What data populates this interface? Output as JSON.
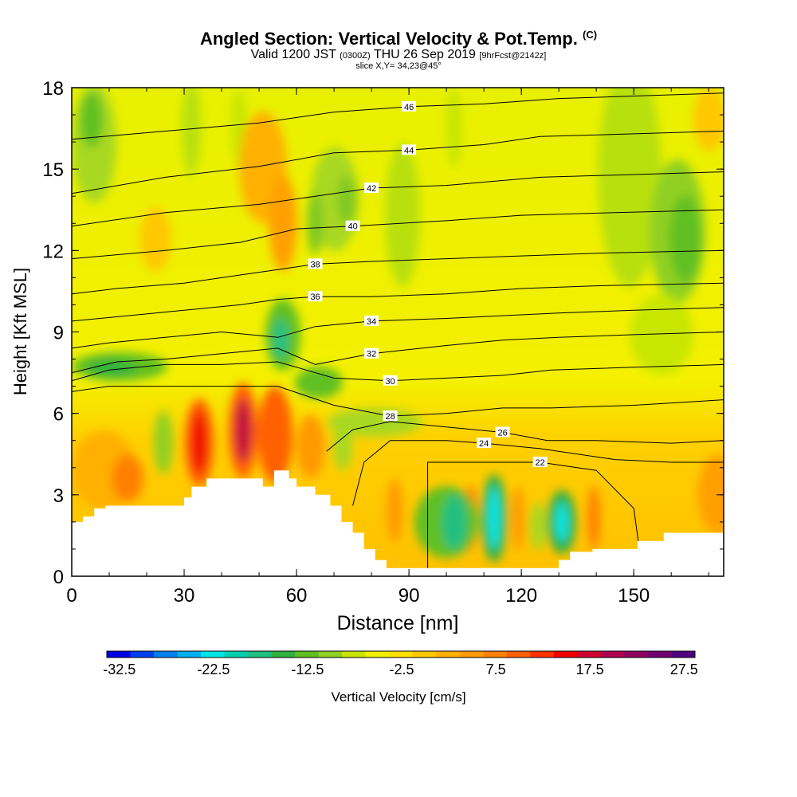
{
  "titles": {
    "main": "Angled Section: Vertical Velocity & Pot.Temp.",
    "copyright": "(C)",
    "valid_prefix": "Valid 1200 JST",
    "valid_utc": "(0300Z)",
    "valid_date": "THU 26 Sep 2019",
    "forecast": "[9hrFcst@2142z]",
    "slice": "slice X,Y= 34,23@45°"
  },
  "colors": {
    "terrain": "#ffffff",
    "contour": "#000000",
    "frame": "#000000"
  },
  "chart_data": {
    "type": "heatmap",
    "xlabel": "Distance [nm]",
    "ylabel": "Height [Kft MSL]",
    "xlim": [
      0,
      174
    ],
    "ylim": [
      0,
      18
    ],
    "xticks": [
      0,
      30,
      60,
      90,
      120,
      150
    ],
    "yticks": [
      0,
      3,
      6,
      9,
      12,
      15,
      18
    ],
    "colorbar": {
      "label": "Vertical Velocity [cm/s]",
      "tick_labels": [
        "-32.5",
        "-22.5",
        "-12.5",
        "-2.5",
        "7.5",
        "17.5",
        "27.5"
      ],
      "colors": [
        "#0000e6",
        "#0040f0",
        "#0080f0",
        "#00b0f0",
        "#00e6e6",
        "#00d0b0",
        "#20c080",
        "#30b040",
        "#60c020",
        "#90d020",
        "#c8e600",
        "#f0f000",
        "#ffe000",
        "#ffc800",
        "#ffb000",
        "#ff9a00",
        "#ff8000",
        "#ff6000",
        "#ff3000",
        "#f00000",
        "#d00030",
        "#b00050",
        "#900060",
        "#700070",
        "#500080"
      ]
    },
    "theta_contours": [
      {
        "label": "22",
        "points": [
          [
            95,
            0
          ],
          [
            95,
            4.2
          ],
          [
            110,
            4.2
          ],
          [
            125,
            4.2
          ],
          [
            140,
            3.9
          ],
          [
            150,
            2.5
          ],
          [
            152,
            0.5
          ]
        ]
      },
      {
        "label": "24",
        "points": [
          [
            75,
            2.6
          ],
          [
            78,
            4.2
          ],
          [
            85,
            5.0
          ],
          [
            100,
            5.0
          ],
          [
            110,
            4.9
          ],
          [
            125,
            4.7
          ],
          [
            145,
            4.3
          ],
          [
            160,
            4.2
          ],
          [
            174,
            4.2
          ]
        ]
      },
      {
        "label": "26",
        "points": [
          [
            68,
            4.6
          ],
          [
            75,
            5.4
          ],
          [
            85,
            5.7
          ],
          [
            100,
            5.5
          ],
          [
            115,
            5.3
          ],
          [
            127,
            5.0
          ],
          [
            140,
            5.0
          ],
          [
            160,
            4.9
          ],
          [
            174,
            5.0
          ]
        ]
      },
      {
        "label": "28",
        "points": [
          [
            0,
            6.8
          ],
          [
            10,
            7.0
          ],
          [
            25,
            7.0
          ],
          [
            40,
            7.0
          ],
          [
            55,
            7.0
          ],
          [
            70,
            6.3
          ],
          [
            85,
            5.9
          ],
          [
            100,
            6.0
          ],
          [
            115,
            6.2
          ],
          [
            128,
            6.2
          ],
          [
            150,
            6.3
          ],
          [
            174,
            6.5
          ]
        ]
      },
      {
        "label": "30",
        "points": [
          [
            0,
            7.2
          ],
          [
            10,
            7.6
          ],
          [
            25,
            7.8
          ],
          [
            40,
            7.8
          ],
          [
            55,
            7.9
          ],
          [
            70,
            7.3
          ],
          [
            85,
            7.2
          ],
          [
            100,
            7.3
          ],
          [
            115,
            7.4
          ],
          [
            128,
            7.6
          ],
          [
            150,
            7.7
          ],
          [
            174,
            7.8
          ]
        ]
      },
      {
        "label": "32",
        "points": [
          [
            0,
            7.5
          ],
          [
            12,
            7.9
          ],
          [
            25,
            8.0
          ],
          [
            40,
            8.2
          ],
          [
            55,
            8.4
          ],
          [
            65,
            7.8
          ],
          [
            80,
            8.2
          ],
          [
            100,
            8.5
          ],
          [
            115,
            8.7
          ],
          [
            130,
            8.8
          ],
          [
            150,
            8.9
          ],
          [
            174,
            9.0
          ]
        ]
      },
      {
        "label": "34",
        "points": [
          [
            0,
            8.4
          ],
          [
            10,
            8.6
          ],
          [
            25,
            8.8
          ],
          [
            40,
            9.0
          ],
          [
            55,
            8.8
          ],
          [
            65,
            9.2
          ],
          [
            80,
            9.4
          ],
          [
            100,
            9.5
          ],
          [
            115,
            9.6
          ],
          [
            130,
            9.7
          ],
          [
            150,
            9.8
          ],
          [
            174,
            9.9
          ]
        ]
      },
      {
        "label": "36",
        "points": [
          [
            0,
            9.4
          ],
          [
            15,
            9.6
          ],
          [
            30,
            9.8
          ],
          [
            45,
            10.0
          ],
          [
            55,
            10.2
          ],
          [
            65,
            10.3
          ],
          [
            80,
            10.3
          ],
          [
            100,
            10.4
          ],
          [
            120,
            10.6
          ],
          [
            140,
            10.7
          ],
          [
            174,
            10.8
          ]
        ]
      },
      {
        "label": "38",
        "points": [
          [
            0,
            10.4
          ],
          [
            12,
            10.6
          ],
          [
            30,
            10.8
          ],
          [
            45,
            11.1
          ],
          [
            55,
            11.3
          ],
          [
            65,
            11.5
          ],
          [
            80,
            11.6
          ],
          [
            100,
            11.7
          ],
          [
            120,
            11.8
          ],
          [
            140,
            11.9
          ],
          [
            174,
            12.0
          ]
        ]
      },
      {
        "label": "40",
        "points": [
          [
            0,
            11.7
          ],
          [
            25,
            12.0
          ],
          [
            45,
            12.3
          ],
          [
            60,
            12.8
          ],
          [
            75,
            12.9
          ],
          [
            100,
            13.1
          ],
          [
            120,
            13.3
          ],
          [
            145,
            13.4
          ],
          [
            174,
            13.5
          ]
        ]
      },
      {
        "label": "42",
        "points": [
          [
            0,
            12.9
          ],
          [
            25,
            13.4
          ],
          [
            50,
            13.7
          ],
          [
            65,
            14.0
          ],
          [
            80,
            14.3
          ],
          [
            100,
            14.4
          ],
          [
            125,
            14.7
          ],
          [
            150,
            14.8
          ],
          [
            174,
            14.9
          ]
        ]
      },
      {
        "label": "44",
        "points": [
          [
            0,
            14.1
          ],
          [
            25,
            14.7
          ],
          [
            50,
            15.1
          ],
          [
            70,
            15.6
          ],
          [
            90,
            15.7
          ],
          [
            110,
            15.9
          ],
          [
            125,
            16.2
          ],
          [
            150,
            16.3
          ],
          [
            174,
            16.4
          ]
        ]
      },
      {
        "label": "46",
        "points": [
          [
            0,
            16.1
          ],
          [
            25,
            16.4
          ],
          [
            50,
            16.7
          ],
          [
            70,
            17.1
          ],
          [
            90,
            17.3
          ],
          [
            110,
            17.4
          ],
          [
            130,
            17.6
          ],
          [
            174,
            17.8
          ]
        ]
      }
    ],
    "terrain_profile": [
      [
        0,
        2
      ],
      [
        3,
        2
      ],
      [
        3,
        2.2
      ],
      [
        6,
        2.2
      ],
      [
        6,
        2.5
      ],
      [
        9,
        2.5
      ],
      [
        9,
        2.6
      ],
      [
        30,
        2.6
      ],
      [
        30,
        2.9
      ],
      [
        32,
        2.9
      ],
      [
        32,
        3.3
      ],
      [
        36,
        3.3
      ],
      [
        36,
        3.6
      ],
      [
        51,
        3.6
      ],
      [
        51,
        3.3
      ],
      [
        54,
        3.3
      ],
      [
        54,
        3.9
      ],
      [
        58,
        3.9
      ],
      [
        58,
        3.6
      ],
      [
        60,
        3.6
      ],
      [
        60,
        3.3
      ],
      [
        65,
        3.3
      ],
      [
        65,
        3.0
      ],
      [
        69,
        3.0
      ],
      [
        69,
        2.6
      ],
      [
        72,
        2.6
      ],
      [
        72,
        2.0
      ],
      [
        75,
        2.0
      ],
      [
        75,
        1.6
      ],
      [
        78,
        1.6
      ],
      [
        78,
        1.0
      ],
      [
        81,
        1.0
      ],
      [
        81,
        0.6
      ],
      [
        84,
        0.6
      ],
      [
        84,
        0.3
      ],
      [
        130,
        0.3
      ],
      [
        130,
        0.6
      ],
      [
        133,
        0.6
      ],
      [
        133,
        0.9
      ],
      [
        139,
        0.9
      ],
      [
        139,
        1.0
      ],
      [
        151,
        1.0
      ],
      [
        151,
        1.3
      ],
      [
        158,
        1.3
      ],
      [
        158,
        1.6
      ],
      [
        174,
        1.6
      ]
    ]
  }
}
